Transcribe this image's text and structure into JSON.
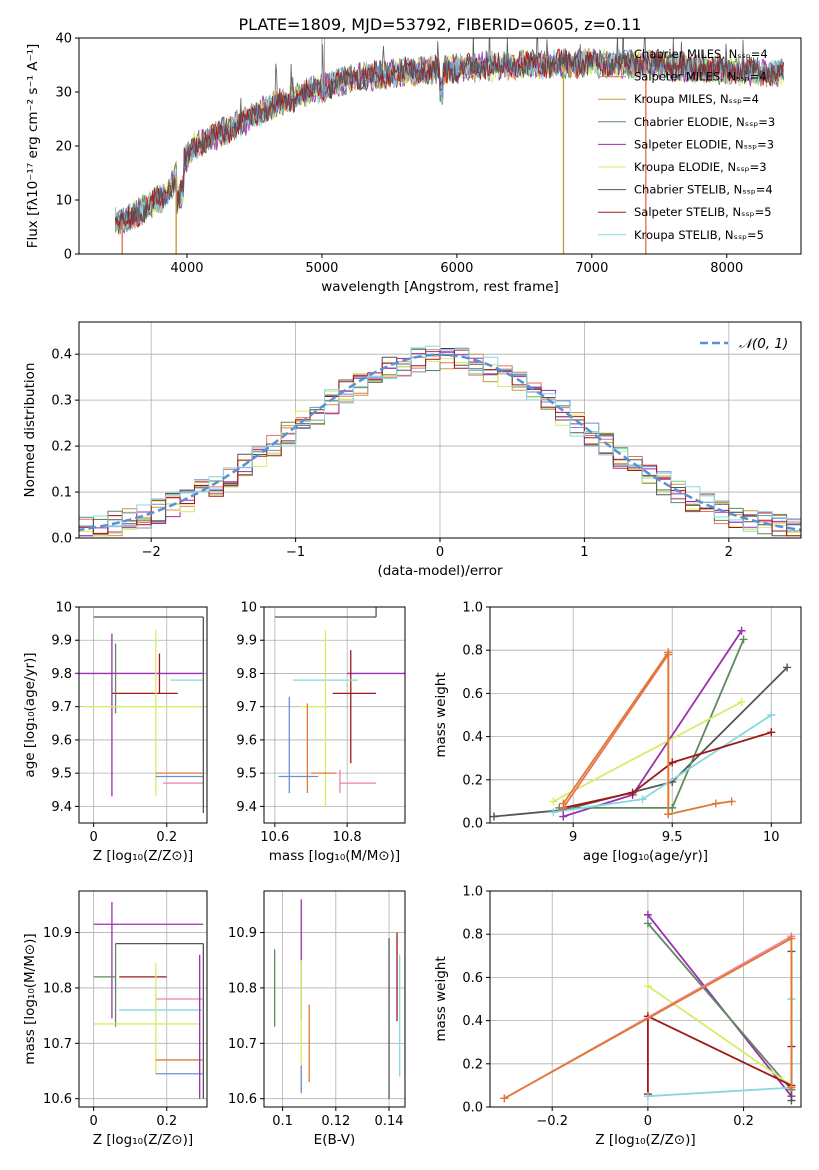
{
  "colors": {
    "chabrier_miles": "#6a8fd6",
    "salpeter_miles": "#e8735a",
    "kroupa_miles": "#c89b3c",
    "chabrier_elodie": "#5e8a5e",
    "salpeter_elodie": "#9b2fb0",
    "kroupa_elodie": "#d7ec6a",
    "chabrier_stelib": "#555555",
    "salpeter_stelib": "#a01818",
    "kroupa_stelib": "#86d8df",
    "normal": "#5b8fd6",
    "orange": "#e07a30",
    "pink": "#ee82a8"
  },
  "chart_data": [
    {
      "type": "line",
      "title": "PLATE=1809, MJD=53792, FIBERID=0605, z=0.11",
      "xlabel": "wavelength [Angstrom, rest frame]",
      "ylabel": "Flux [fλ10⁻¹⁷ erg cm⁻² s⁻¹ A⁻¹]",
      "xlim": [
        3200,
        8550
      ],
      "ylim": [
        0,
        40
      ],
      "xticks": [
        4000,
        5000,
        6000,
        7000,
        8000
      ],
      "yticks": [
        0,
        10,
        20,
        30,
        40
      ],
      "legend_position": "top-right",
      "series": [
        {
          "name": "Chabrier MILES, Nₛₛₚ=4"
        },
        {
          "name": "Salpeter MILES, Nₛₛₚ=4"
        },
        {
          "name": "Kroupa MILES, Nₛₛₚ=4"
        },
        {
          "name": "Chabrier ELODIE, Nₛₛₚ=3"
        },
        {
          "name": "Salpeter ELODIE, Nₛₛₚ=3"
        },
        {
          "name": "Kroupa ELODIE, Nₛₛₚ=3"
        },
        {
          "name": "Chabrier STELIB, Nₛₛₚ=4"
        },
        {
          "name": "Salpeter STELIB, Nₛₛₚ=5"
        },
        {
          "name": "Kroupa STELIB, Nₛₛₚ=5"
        }
      ],
      "continuum": {
        "x": [
          3500,
          3700,
          3850,
          3950,
          4050,
          4300,
          4600,
          4900,
          5200,
          5500,
          5800,
          6100,
          6400,
          6700,
          7000,
          7300,
          7500,
          7700,
          8000,
          8400
        ],
        "y": [
          6,
          8.5,
          11,
          16,
          20,
          23,
          27,
          30,
          32.5,
          33.5,
          34,
          34.5,
          35,
          35.2,
          35.3,
          35.2,
          35,
          34.5,
          34,
          33.5
        ]
      }
    },
    {
      "type": "line",
      "xlabel": "(data-model)/error",
      "ylabel": "Normed distribution",
      "xlim": [
        -2.5,
        2.5
      ],
      "ylim": [
        0,
        0.47
      ],
      "xticks": [
        -2,
        -1,
        0,
        1,
        2
      ],
      "yticks": [
        0.0,
        0.1,
        0.2,
        0.3,
        0.4
      ],
      "legend": "𝒩(0, 1)",
      "legend_position": "top-right",
      "normal_curve": {
        "mean": 0,
        "sigma": 1
      }
    },
    {
      "type": "scatter",
      "xlabel": "Z [log₁₀(Z/Z⊙)]",
      "ylabel": "age  [log₁₀(age/yr)]",
      "xlim": [
        -0.04,
        0.31
      ],
      "ylim": [
        9.35,
        10.0
      ],
      "xticks": [
        0.0,
        0.2
      ],
      "yticks": [
        9.4,
        9.5,
        9.6,
        9.7,
        9.8,
        9.9,
        10.0
      ],
      "points": [
        {
          "x": 0.08,
          "xerr": [
            0.08,
            0.22
          ],
          "y": 9.97,
          "yerr": [
            0.0,
            0.0
          ],
          "c": "chabrier_stelib"
        },
        {
          "x": 0.18,
          "xerr": [
            0.13,
            0.05
          ],
          "y": 9.74,
          "yerr": [
            0.0,
            0.12
          ],
          "c": "salpeter_stelib"
        },
        {
          "x": 0.05,
          "xerr": [
            0.1,
            0.25
          ],
          "y": 9.8,
          "yerr": [
            0.37,
            0.12
          ],
          "c": "salpeter_elodie"
        },
        {
          "x": 0.06,
          "xerr": [
            0.0,
            0.0
          ],
          "y": 9.78,
          "yerr": [
            0.1,
            0.11
          ],
          "c": "chabrier_elodie"
        },
        {
          "x": 0.17,
          "xerr": [
            0.2,
            0.13
          ],
          "y": 9.7,
          "yerr": [
            0.27,
            0.23
          ],
          "c": "kroupa_elodie"
        },
        {
          "x": 0.3,
          "xerr": [
            0.09,
            0.0
          ],
          "y": 9.78,
          "yerr": [
            0.21,
            0.16
          ],
          "c": "kroupa_stelib"
        },
        {
          "x": 0.29,
          "xerr": [
            0.12,
            0.01
          ],
          "y": 9.5,
          "yerr": [
            0.0,
            0.0
          ],
          "c": "orange"
        },
        {
          "x": 0.29,
          "xerr": [
            0.12,
            0.01
          ],
          "y": 9.49,
          "yerr": [
            0.0,
            0.0
          ],
          "c": "chabrier_miles"
        },
        {
          "x": 0.29,
          "xerr": [
            0.1,
            0.01
          ],
          "y": 9.47,
          "yerr": [
            0.0,
            0.0
          ],
          "c": "pink"
        },
        {
          "x": 0.3,
          "xerr": [
            0.0,
            0.0
          ],
          "y": 9.55,
          "yerr": [
            0.17,
            0.42
          ],
          "c": "chabrier_stelib"
        }
      ]
    },
    {
      "type": "scatter",
      "xlabel": "mass [log₁₀(M/M⊙)]",
      "xlim": [
        10.57,
        10.96
      ],
      "ylim": [
        9.35,
        10.0
      ],
      "xticks": [
        10.6,
        10.8
      ],
      "yticks": [
        9.4,
        9.5,
        9.6,
        9.7,
        9.8,
        9.9,
        10.0
      ],
      "points": [
        {
          "x": 10.88,
          "xerr": [
            0.28,
            0.0
          ],
          "y": 9.97,
          "yerr": [
            0.0,
            0.59
          ],
          "c": "chabrier_stelib"
        },
        {
          "x": 10.82,
          "xerr": [
            0.06,
            0.06
          ],
          "y": 9.74,
          "yerr": [
            0.0,
            0.0
          ],
          "c": "salpeter_stelib"
        },
        {
          "x": 10.91,
          "xerr": [
            0.11,
            0.05
          ],
          "y": 9.8,
          "yerr": [
            0.0,
            0.0
          ],
          "c": "salpeter_elodie"
        },
        {
          "x": 10.81,
          "xerr": [
            0.0,
            0.0
          ],
          "y": 9.75,
          "yerr": [
            0.22,
            0.12
          ],
          "c": "salpeter_stelib"
        },
        {
          "x": 10.77,
          "xerr": [
            0.12,
            0.06
          ],
          "y": 9.78,
          "yerr": [
            0.0,
            0.0
          ],
          "c": "kroupa_stelib"
        },
        {
          "x": 10.74,
          "xerr": [
            0.07,
            0.0
          ],
          "y": 9.7,
          "yerr": [
            0.3,
            0.23
          ],
          "c": "kroupa_elodie"
        },
        {
          "x": 10.69,
          "xerr": [
            0.0,
            0.0
          ],
          "y": 9.6,
          "yerr": [
            0.16,
            0.11
          ],
          "c": "orange"
        },
        {
          "x": 10.64,
          "xerr": [
            0.0,
            0.0
          ],
          "y": 9.6,
          "yerr": [
            0.16,
            0.13
          ],
          "c": "chabrier_miles"
        },
        {
          "x": 10.66,
          "xerr": [
            0.05,
            0.06
          ],
          "y": 9.49,
          "yerr": [
            0.0,
            0.0
          ],
          "c": "chabrier_miles"
        },
        {
          "x": 10.7,
          "xerr": [
            0.0,
            0.07
          ],
          "y": 9.5,
          "yerr": [
            0.0,
            0.0
          ],
          "c": "orange"
        },
        {
          "x": 10.78,
          "xerr": [
            0.0,
            0.1
          ],
          "y": 9.47,
          "yerr": [
            0.0,
            0.0
          ],
          "c": "pink"
        },
        {
          "x": 10.78,
          "xerr": [
            0.0,
            0.0
          ],
          "y": 9.48,
          "yerr": [
            0.04,
            0.03
          ],
          "c": "pink"
        }
      ]
    },
    {
      "type": "line",
      "xlabel": "age  [log₁₀(age/yr)]",
      "ylabel": "mass weight",
      "xlim": [
        8.58,
        10.15
      ],
      "ylim": [
        0.0,
        1.0
      ],
      "xticks": [
        9.0,
        9.5,
        10.0
      ],
      "yticks": [
        0.0,
        0.2,
        0.4,
        0.6,
        0.8,
        1.0
      ],
      "series": [
        {
          "c": "chabrier_stelib",
          "x": [
            8.6,
            8.95,
            9.5,
            10.08
          ],
          "y": [
            0.03,
            0.06,
            0.19,
            0.72
          ]
        },
        {
          "c": "salpeter_elodie",
          "x": [
            8.95,
            9.3,
            9.85
          ],
          "y": [
            0.03,
            0.13,
            0.89
          ]
        },
        {
          "c": "chabrier_elodie",
          "x": [
            8.93,
            9.5,
            9.86
          ],
          "y": [
            0.07,
            0.07,
            0.85
          ]
        },
        {
          "c": "kroupa_elodie",
          "x": [
            8.9,
            9.85
          ],
          "y": [
            0.1,
            0.56
          ]
        },
        {
          "c": "kroupa_stelib",
          "x": [
            8.9,
            9.35,
            10.0
          ],
          "y": [
            0.05,
            0.11,
            0.5
          ]
        },
        {
          "c": "salpeter_stelib",
          "x": [
            8.95,
            9.3,
            9.5,
            10.0
          ],
          "y": [
            0.07,
            0.14,
            0.28,
            0.42
          ]
        },
        {
          "c": "salpeter_miles",
          "x": [
            8.95,
            9.48,
            9.48
          ],
          "y": [
            0.07,
            0.78,
            0.04
          ]
        },
        {
          "c": "orange",
          "x": [
            8.95,
            9.48,
            9.48,
            9.72,
            9.8
          ],
          "y": [
            0.09,
            0.79,
            0.04,
            0.09,
            0.1
          ]
        }
      ]
    },
    {
      "type": "scatter",
      "xlabel": "Z [log₁₀(Z/Z⊙)]",
      "ylabel": "mass [log₁₀(M/M⊙)]",
      "xlim": [
        -0.04,
        0.31
      ],
      "ylim": [
        10.585,
        10.975
      ],
      "xticks": [
        0.0,
        0.2
      ],
      "yticks": [
        10.6,
        10.7,
        10.8,
        10.9
      ],
      "points": [
        {
          "x": 0.05,
          "xerr": [
            0.05,
            0.25
          ],
          "y": 10.915,
          "yerr": [
            0.17,
            0.04
          ],
          "c": "salpeter_elodie"
        },
        {
          "x": 0.3,
          "xerr": [
            0.24,
            0.0
          ],
          "y": 10.88,
          "yerr": [
            0.28,
            0.0
          ],
          "c": "chabrier_stelib"
        },
        {
          "x": 0.06,
          "xerr": [
            0.06,
            0.0
          ],
          "y": 10.82,
          "yerr": [
            0.09,
            0.06
          ],
          "c": "chabrier_elodie"
        },
        {
          "x": 0.18,
          "xerr": [
            0.11,
            0.02
          ],
          "y": 10.82,
          "yerr": [
            0.0,
            0.0
          ],
          "c": "salpeter_stelib"
        },
        {
          "x": 0.3,
          "xerr": [
            0.13,
            0.0
          ],
          "y": 10.78,
          "yerr": [
            0.0,
            0.0
          ],
          "c": "pink"
        },
        {
          "x": 0.3,
          "xerr": [
            0.23,
            0.0
          ],
          "y": 10.76,
          "yerr": [
            0.0,
            0.0
          ],
          "c": "kroupa_stelib"
        },
        {
          "x": 0.17,
          "xerr": [
            0.17,
            0.12
          ],
          "y": 10.735,
          "yerr": [
            0.09,
            0.11
          ],
          "c": "kroupa_elodie"
        },
        {
          "x": 0.3,
          "xerr": [
            0.13,
            0.0
          ],
          "y": 10.67,
          "yerr": [
            0.0,
            0.0
          ],
          "c": "orange"
        },
        {
          "x": 0.3,
          "xerr": [
            0.13,
            0.0
          ],
          "y": 10.645,
          "yerr": [
            0.0,
            0.0
          ],
          "c": "chabrier_miles"
        },
        {
          "x": 0.29,
          "xerr": [
            0.0,
            0.0
          ],
          "y": 10.73,
          "yerr": [
            0.13,
            0.13
          ],
          "c": "salpeter_elodie"
        }
      ]
    },
    {
      "type": "scatter",
      "xlabel": "E(B-V)",
      "xlim": [
        0.093,
        0.146
      ],
      "ylim": [
        10.585,
        10.975
      ],
      "xticks": [
        0.1,
        0.12,
        0.14
      ],
      "yticks": [
        10.6,
        10.7,
        10.8,
        10.9
      ],
      "points": [
        {
          "x": 0.097,
          "y": 10.8,
          "yerr": [
            0.07,
            0.07
          ],
          "c": "chabrier_elodie"
        },
        {
          "x": 0.107,
          "y": 10.86,
          "yerr": [
            0.12,
            0.1
          ],
          "c": "salpeter_elodie"
        },
        {
          "x": 0.107,
          "y": 10.73,
          "yerr": [
            0.12,
            0.12
          ],
          "c": "kroupa_elodie"
        },
        {
          "x": 0.107,
          "y": 10.66,
          "yerr": [
            0.05,
            0.0
          ],
          "c": "chabrier_miles"
        },
        {
          "x": 0.11,
          "y": 10.7,
          "yerr": [
            0.07,
            0.07
          ],
          "c": "orange"
        },
        {
          "x": 0.14,
          "y": 10.74,
          "yerr": [
            0.14,
            0.15
          ],
          "c": "chabrier_stelib"
        },
        {
          "x": 0.143,
          "y": 10.82,
          "yerr": [
            0.08,
            0.08
          ],
          "c": "salpeter_stelib"
        },
        {
          "x": 0.144,
          "y": 10.75,
          "yerr": [
            0.11,
            0.11
          ],
          "c": "kroupa_stelib"
        }
      ]
    },
    {
      "type": "line",
      "xlabel": "Z [log₁₀(Z/Z⊙)]",
      "ylabel": "mass weight",
      "xlim": [
        -0.33,
        0.32
      ],
      "ylim": [
        0.0,
        1.0
      ],
      "xticks": [
        -0.2,
        0.0,
        0.2
      ],
      "yticks": [
        0.0,
        0.2,
        0.4,
        0.6,
        0.8,
        1.0
      ],
      "series": [
        {
          "c": "salpeter_elodie",
          "x": [
            0.0,
            0.3
          ],
          "y": [
            0.89,
            0.05
          ]
        },
        {
          "c": "chabrier_elodie",
          "x": [
            0.0,
            0.3
          ],
          "y": [
            0.85,
            0.08
          ]
        },
        {
          "c": "kroupa_elodie",
          "x": [
            0.0,
            0.3
          ],
          "y": [
            0.56,
            0.1
          ]
        },
        {
          "c": "salpeter_stelib",
          "x": [
            0.0,
            0.0,
            0.3,
            0.3
          ],
          "y": [
            0.06,
            0.42,
            0.1,
            0.28
          ]
        },
        {
          "c": "kroupa_stelib",
          "x": [
            0.0,
            0.3,
            0.3
          ],
          "y": [
            0.05,
            0.09,
            0.5
          ]
        },
        {
          "c": "chabrier_stelib",
          "x": [
            0.3,
            0.3
          ],
          "y": [
            0.72,
            0.03
          ]
        },
        {
          "c": "pink",
          "x": [
            -0.3,
            0.3
          ],
          "y": [
            0.04,
            0.79
          ]
        },
        {
          "c": "orange",
          "x": [
            -0.3,
            0.3,
            0.3
          ],
          "y": [
            0.04,
            0.78,
            0.09
          ]
        }
      ]
    }
  ]
}
